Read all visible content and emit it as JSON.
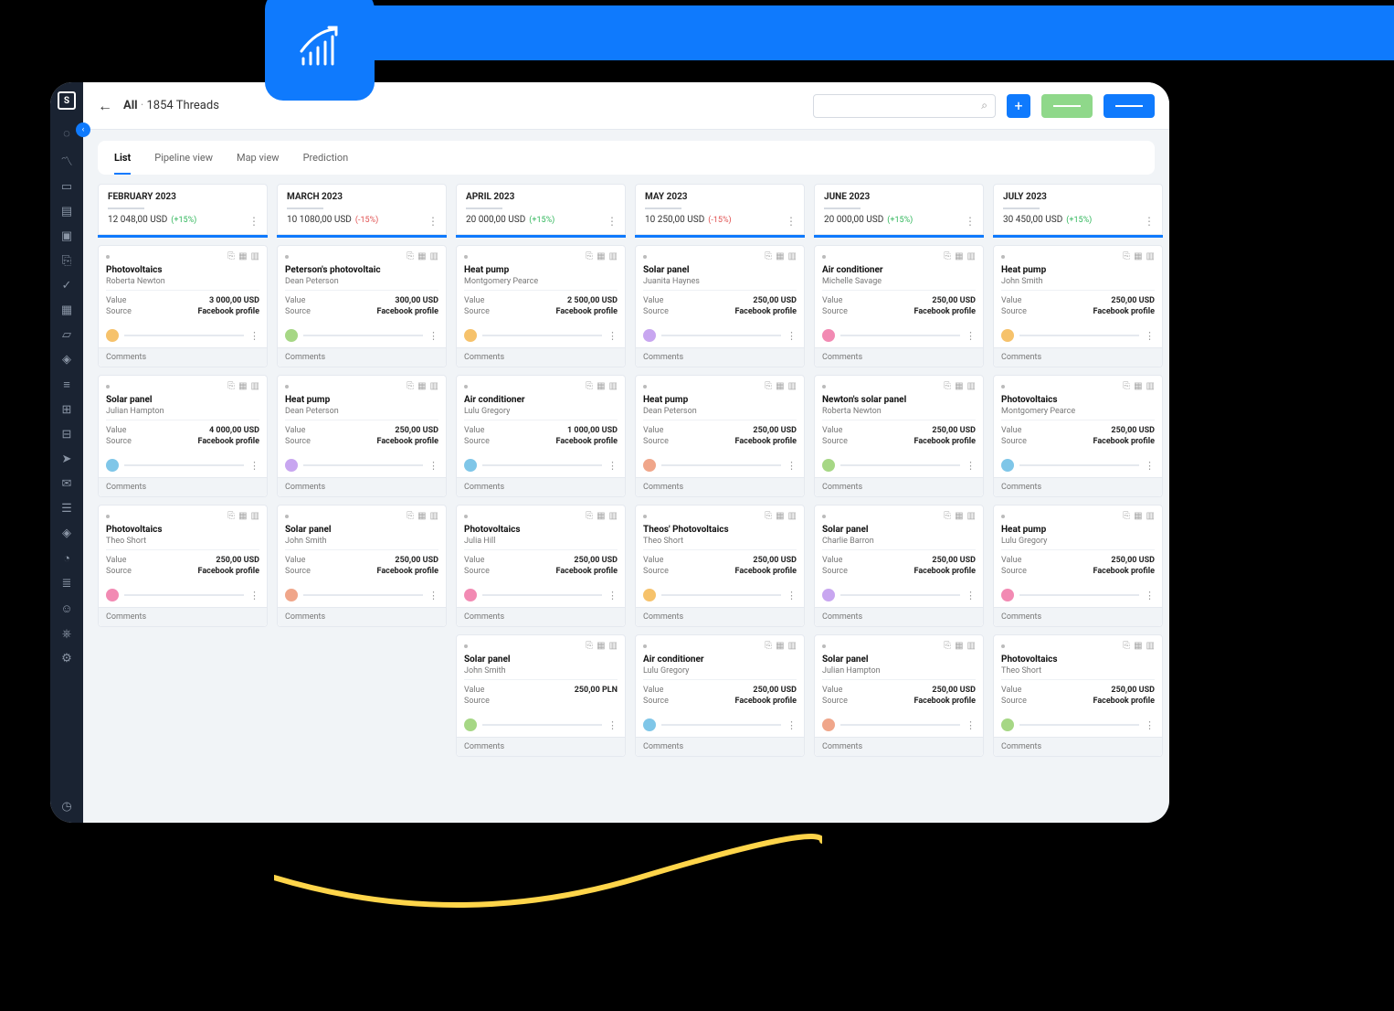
{
  "colors": {
    "brand": "#0f7afd",
    "green": "#8fd88a",
    "pos": "#2fb65a",
    "neg": "#e04f4f",
    "sidebar": "#1a2332",
    "bg": "#f1f4f7",
    "accent_yellow": "#ffd54a"
  },
  "header": {
    "breadcrumb_first": "All",
    "breadcrumb_sep": "·",
    "breadcrumb_count": "1854 Threads",
    "search_placeholder": ""
  },
  "tabs": [
    "List",
    "Pipeline view",
    "Map view",
    "Prediction"
  ],
  "tabs_active": 0,
  "avatar_palette": [
    "#f6c26b",
    "#7fc6e8",
    "#f28ab3",
    "#a6d785",
    "#c8a6f0",
    "#f0a68a"
  ],
  "columns": [
    {
      "title": "FEBRUARY 2023",
      "amount": "12 048,00 USD",
      "delta": "(+15%)",
      "delta_sign": "pos",
      "cards": [
        {
          "title": "Photovoltaics",
          "person": "Roberta Newton",
          "value": "3 000,00 USD",
          "source": "Facebook profile"
        },
        {
          "title": "Solar panel",
          "person": "Julian Hampton",
          "value": "4 000,00 USD",
          "source": "Facebook profile"
        },
        {
          "title": "Photovoltaics",
          "person": "Theo Short",
          "value": "250,00 USD",
          "source": "Facebook profile"
        }
      ]
    },
    {
      "title": "MARCH 2023",
      "amount": "10 1080,00 USD",
      "delta": "(-15%)",
      "delta_sign": "neg",
      "cards": [
        {
          "title": "Peterson's photovoltaic",
          "person": "Dean Peterson",
          "value": "300,00 USD",
          "source": "Facebook profile"
        },
        {
          "title": "Heat pump",
          "person": "Dean Peterson",
          "value": "250,00 USD",
          "source": "Facebook profile"
        },
        {
          "title": "Solar panel",
          "person": "John Smith",
          "value": "250,00 USD",
          "source": "Facebook profile"
        }
      ]
    },
    {
      "title": "APRIL 2023",
      "amount": "20 000,00 USD",
      "delta": "(+15%)",
      "delta_sign": "pos",
      "cards": [
        {
          "title": "Heat pump",
          "person": "Montgomery Pearce",
          "value": "2 500,00 USD",
          "source": "Facebook profile"
        },
        {
          "title": "Air conditioner",
          "person": "Lulu Gregory",
          "value": "1 000,00 USD",
          "source": "Facebook profile"
        },
        {
          "title": "Photovoltaics",
          "person": "Julia Hill",
          "value": "250,00 USD",
          "source": "Facebook profile"
        },
        {
          "title": "Solar panel",
          "person": "John Smith",
          "value": "250,00 PLN",
          "source": ""
        }
      ]
    },
    {
      "title": "MAY 2023",
      "amount": "10 250,00 USD",
      "delta": "(-15%)",
      "delta_sign": "neg",
      "cards": [
        {
          "title": "Solar panel",
          "person": "Juanita Haynes",
          "value": "250,00 USD",
          "source": "Facebook profile"
        },
        {
          "title": "Heat pump",
          "person": "Dean Peterson",
          "value": "250,00 USD",
          "source": "Facebook profile"
        },
        {
          "title": "Theos' Photovoltaics",
          "person": "Theo Short",
          "value": "250,00 USD",
          "source": "Facebook profile"
        },
        {
          "title": "Air conditioner",
          "person": "Lulu Gregory",
          "value": "250,00 USD",
          "source": "Facebook profile"
        }
      ]
    },
    {
      "title": "JUNE 2023",
      "amount": "20 000,00 USD",
      "delta": "(+15%)",
      "delta_sign": "pos",
      "cards": [
        {
          "title": "Air conditioner",
          "person": "Michelle Savage",
          "value": "250,00 USD",
          "source": "Facebook profile"
        },
        {
          "title": "Newton's solar panel",
          "person": "Roberta Newton",
          "value": "250,00 USD",
          "source": "Facebook profile"
        },
        {
          "title": "Solar panel",
          "person": "Charlie Barron",
          "value": "250,00 USD",
          "source": "Facebook profile"
        },
        {
          "title": "Solar panel",
          "person": "Julian Hampton",
          "value": "250,00 USD",
          "source": "Facebook profile"
        }
      ]
    },
    {
      "title": "JULY 2023",
      "amount": "30 450,00 USD",
      "delta": "(+15%)",
      "delta_sign": "pos",
      "cards": [
        {
          "title": "Heat pump",
          "person": "John Smith",
          "value": "250,00 USD",
          "source": "Facebook profile"
        },
        {
          "title": "Photovoltaics",
          "person": "Montgomery Pearce",
          "value": "250,00 USD",
          "source": "Facebook profile"
        },
        {
          "title": "Heat pump",
          "person": "Lulu Gregory",
          "value": "250,00 USD",
          "source": "Facebook profile"
        },
        {
          "title": "Photovoltaics",
          "person": "Theo Short",
          "value": "250,00 USD",
          "source": "Facebook profile"
        }
      ]
    }
  ],
  "card_labels": {
    "value": "Value",
    "source": "Source",
    "comments": "Comments"
  },
  "sidebar_icons": [
    "compass-icon",
    "chart-icon",
    "monitor-icon",
    "file-icon",
    "box-icon",
    "clipboard-icon",
    "check-icon",
    "calendar-icon",
    "folder-icon",
    "cube-icon",
    "sliders-icon",
    "grid-icon",
    "inbox-icon",
    "send-icon",
    "chat-icon",
    "message-icon",
    "bookmark-icon",
    "bell-icon",
    "layers-icon",
    "user-icon",
    "graduation-icon",
    "gear-icon"
  ]
}
